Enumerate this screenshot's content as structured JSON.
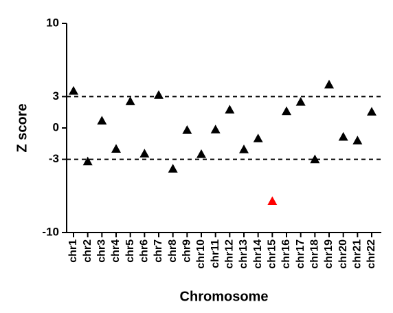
{
  "chart_data": {
    "type": "scatter",
    "x_label": "Chromosome",
    "y_label": "Z score",
    "categories": [
      "chr1",
      "chr2",
      "chr3",
      "chr4",
      "chr5",
      "chr6",
      "chr7",
      "chr8",
      "chr9",
      "chr10",
      "chr11",
      "chr12",
      "chr13",
      "chr14",
      "chr15",
      "chr16",
      "chr17",
      "chr18",
      "chr19",
      "chr20",
      "chr21",
      "chr22"
    ],
    "series": [
      {
        "values": [
          3.55,
          -3.2,
          0.7,
          -2.0,
          2.55,
          -2.45,
          3.15,
          -3.9,
          -0.2,
          -2.5,
          -0.15,
          1.75,
          -2.05,
          -1.0,
          -7.0,
          1.6,
          2.5,
          -3.0,
          4.15,
          -0.85,
          -1.2,
          1.55
        ],
        "color": "#000000",
        "colors": [
          "#000000",
          "#000000",
          "#000000",
          "#000000",
          "#000000",
          "#000000",
          "#000000",
          "#000000",
          "#000000",
          "#000000",
          "#000000",
          "#000000",
          "#000000",
          "#000000",
          "#ff0000",
          "#000000",
          "#000000",
          "#000000",
          "#000000",
          "#000000",
          "#000000",
          "#000000"
        ],
        "marker": "triangle"
      }
    ],
    "ylim": [
      -10,
      10
    ],
    "yticks": [
      -10,
      -3,
      0,
      3,
      10
    ],
    "hlines": [
      3,
      -3
    ],
    "grid": false
  }
}
